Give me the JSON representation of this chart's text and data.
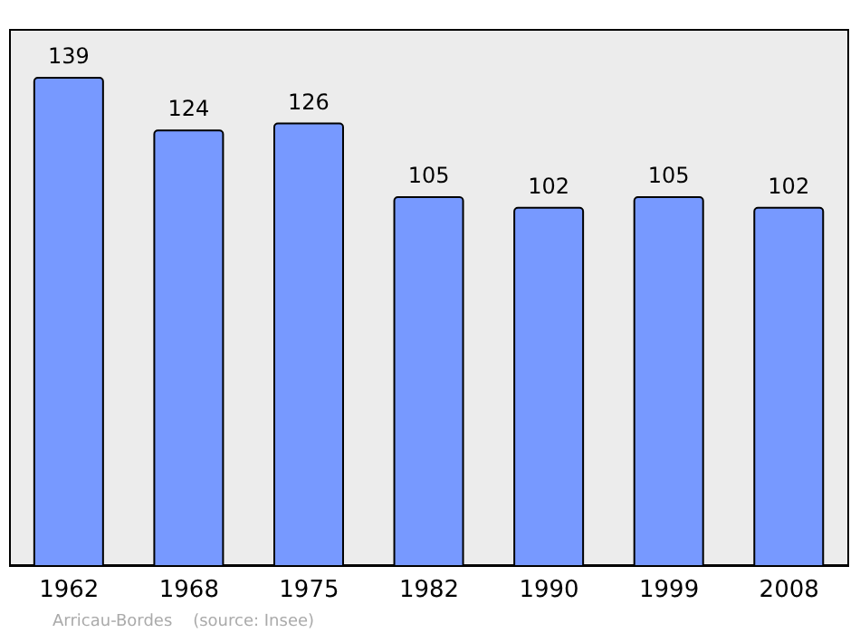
{
  "chart_data": {
    "type": "bar",
    "categories": [
      "1962",
      "1968",
      "1975",
      "1982",
      "1990",
      "1999",
      "2008"
    ],
    "values": [
      139,
      124,
      126,
      105,
      102,
      105,
      102
    ],
    "color": "#7799ff",
    "data_labels": true,
    "annotations": [
      "Arricau-Bordes    (source: Insee)"
    ]
  }
}
